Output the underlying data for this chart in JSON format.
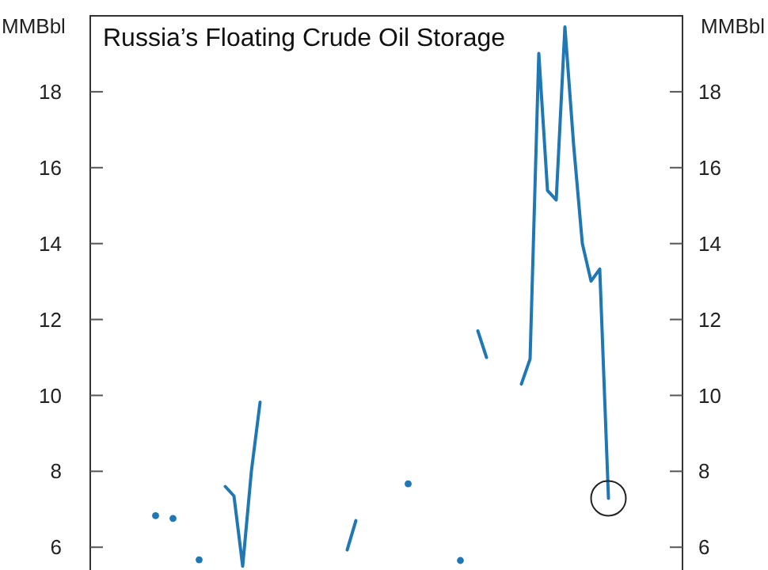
{
  "chart_data": {
    "type": "line",
    "title": "Russia’s Floating Crude Oil Storage",
    "ylabel": "MMBbl",
    "y2label": "MMBbl",
    "categories": [
      null,
      null,
      null,
      null,
      null,
      null,
      null,
      null,
      null,
      null,
      null,
      null,
      null,
      null,
      null,
      null,
      null,
      null,
      null,
      null,
      null,
      null,
      null,
      null,
      null,
      null,
      null,
      null,
      null,
      null,
      null,
      null,
      null,
      null,
      null,
      null,
      null,
      null,
      null,
      null,
      null,
      null,
      null,
      null,
      null,
      null,
      null,
      null,
      null,
      null,
      null,
      null,
      null,
      null,
      null,
      null,
      null,
      null,
      null,
      null,
      null,
      null,
      null,
      null,
      null,
      null,
      null,
      null
    ],
    "series": [
      {
        "color": "#1f77b4",
        "values": [
          null,
          null,
          null,
          null,
          null,
          null,
          null,
          6.83,
          null,
          6.76,
          null,
          null,
          5.67,
          null,
          null,
          7.6,
          7.35,
          5.5,
          8.0,
          9.82,
          null,
          null,
          null,
          null,
          null,
          null,
          null,
          null,
          null,
          5.93,
          6.7,
          null,
          null,
          null,
          null,
          null,
          7.67,
          null,
          null,
          null,
          null,
          null,
          5.65,
          null,
          11.7,
          11.0,
          null,
          null,
          null,
          10.3,
          10.96,
          19.01,
          15.4,
          15.15,
          19.71,
          16.6,
          14.0,
          13.01,
          13.33,
          7.29,
          null,
          null,
          null,
          null,
          null,
          null,
          null,
          null
        ]
      }
    ],
    "ylim": [
      5.4,
      20
    ],
    "yticks": [
      6,
      8,
      10,
      12,
      14,
      16,
      18
    ],
    "y2lim": [
      5.4,
      20
    ],
    "y2ticks": [
      6,
      8,
      10,
      12,
      14,
      16,
      18
    ],
    "grid": false,
    "marker": "none",
    "line_style": "solid"
  }
}
